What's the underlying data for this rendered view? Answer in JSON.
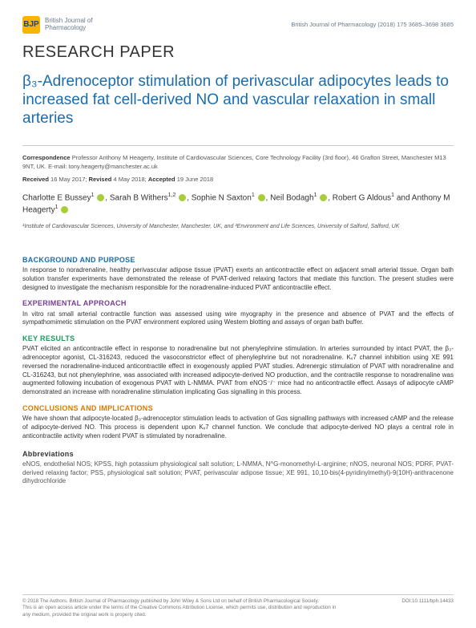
{
  "header": {
    "logo_text": "BJP",
    "journal_line1": "British Journal of",
    "journal_line2": "Pharmacology",
    "citation": "British Journal of Pharmacology (2018) 175 3685–3698   3685"
  },
  "label": "RESEARCH PAPER",
  "title": "β₃-Adrenoceptor stimulation of perivascular adipocytes leads to increased fat cell-derived NO and vascular relaxation in small arteries",
  "correspondence": {
    "label": "Correspondence",
    "text": "Professor Anthony M Heagerty, Institute of Cardiovascular Sciences, Core Technology Facility (3rd floor), 46 Grafton Street, Manchester M13 9NT, UK. E-mail: tony.heagerty@manchester.ac.uk"
  },
  "dates": {
    "received_label": "Received",
    "received": "16 May 2017;",
    "revised_label": "Revised",
    "revised": "4 May 2018;",
    "accepted_label": "Accepted",
    "accepted": "19 June 2018"
  },
  "authors_html": "Charlotte E Bussey¹ ⬤, Sarah B Withers¹,² ⬤, Sophie N Saxton¹ ⬤, Neil Bodagh¹ ⬤, Robert G Aldous¹ and Anthony M Heagerty¹ ⬤",
  "authors": [
    {
      "name": "Charlotte E Bussey",
      "sup": "1",
      "orcid": true
    },
    {
      "name": "Sarah B Withers",
      "sup": "1,2",
      "orcid": true
    },
    {
      "name": "Sophie N Saxton",
      "sup": "1",
      "orcid": true
    },
    {
      "name": "Neil Bodagh",
      "sup": "1",
      "orcid": true
    },
    {
      "name": "Robert G Aldous",
      "sup": "1",
      "orcid": false
    },
    {
      "name": "Anthony M Heagerty",
      "sup": "1",
      "orcid": true
    }
  ],
  "affiliations": "¹Institute of Cardiovascular Sciences, University of Manchester, Manchester, UK, and ²Environment and Life Sciences, University of Salford, Salford, UK",
  "sections": {
    "background": {
      "heading": "BACKGROUND AND PURPOSE",
      "body": "In response to noradrenaline, healthy perivascular adipose tissue (PVAT) exerts an anticontractile effect on adjacent small arterial tissue. Organ bath solution transfer experiments have demonstrated the release of PVAT-derived relaxing factors that mediate this function. The present studies were designed to investigate the mechanism responsible for the noradrenaline-induced PVAT anticontractile effect.",
      "color": "#1a6caf"
    },
    "approach": {
      "heading": "EXPERIMENTAL APPROACH",
      "body": "In vitro rat small arterial contractile function was assessed using wire myography in the presence and absence of PVAT and the effects of sympathomimetic stimulation on the PVAT environment explored using Western blotting and assays of organ bath buffer.",
      "color": "#7a3a9a"
    },
    "results": {
      "heading": "KEY RESULTS",
      "body": "PVAT elicited an anticontractile effect in response to noradrenaline but not phenylephrine stimulation. In arteries surrounded by intact PVAT, the β₃-adrenoceptor agonist, CL-316243, reduced the vasoconstrictor effect of phenylephrine but not noradrenaline. Kᵥ7 channel inhibition using XE 991 reversed the noradrenaline-induced anticontractile effect in exogenously applied PVAT studies. Adrenergic stimulation of PVAT with noradrenaline and CL-316243, but not phenylephrine, was associated with increased adipocyte-derived NO production, and the contractile response to noradrenaline was augmented following incubation of exogenous PVAT with L-NMMA. PVAT from eNOS⁻/⁻ mice had no anticontractile effect. Assays of adipocyte cAMP demonstrated an increase with noradrenaline stimulation implicating Gαs signalling in this process.",
      "color": "#1a9a5a"
    },
    "conclusions": {
      "heading": "CONCLUSIONS AND IMPLICATIONS",
      "body": "We have shown that adipocyte-located β₃-adrenoceptor stimulation leads to activation of Gαs signalling pathways with increased cAMP and the release of adipocyte-derived NO. This process is dependent upon Kᵥ7 channel function. We conclude that adipocyte-derived NO plays a central role in anticontractile activity when rodent PVAT is stimulated by noradrenaline.",
      "color": "#d97a00"
    },
    "abbreviations": {
      "heading": "Abbreviations",
      "body": "eNOS, endothelial NOS; KPSS, high potassium physiological salt solution; L-NMMA, N^G-monomethyl-L-arginine; nNOS, neuronal NOS; PDRF, PVAT-derived relaxing factor; PSS, physiological salt solution; PVAT, perivascular adipose tissue; XE 991, 10,10-bis(4-pyridinylmethyl)-9(10H)-anthracenone dihydrochloride"
    }
  },
  "footer": {
    "copyright": "© 2018 The Authors. British Journal of Pharmacology published by John Wiley & Sons Ltd on behalf of British Pharmacological Society.",
    "license": "This is an open access article under the terms of the Creative Commons Attribution License, which permits use, distribution and reproduction in any medium, provided the original work is properly cited.",
    "doi": "DOI:10.1111/bph.14433"
  },
  "colors": {
    "title": "#1a6caf",
    "logo_bg": "#f7b500",
    "orcid": "#a6ce39",
    "text": "#333333",
    "muted": "#6a7a8a"
  }
}
